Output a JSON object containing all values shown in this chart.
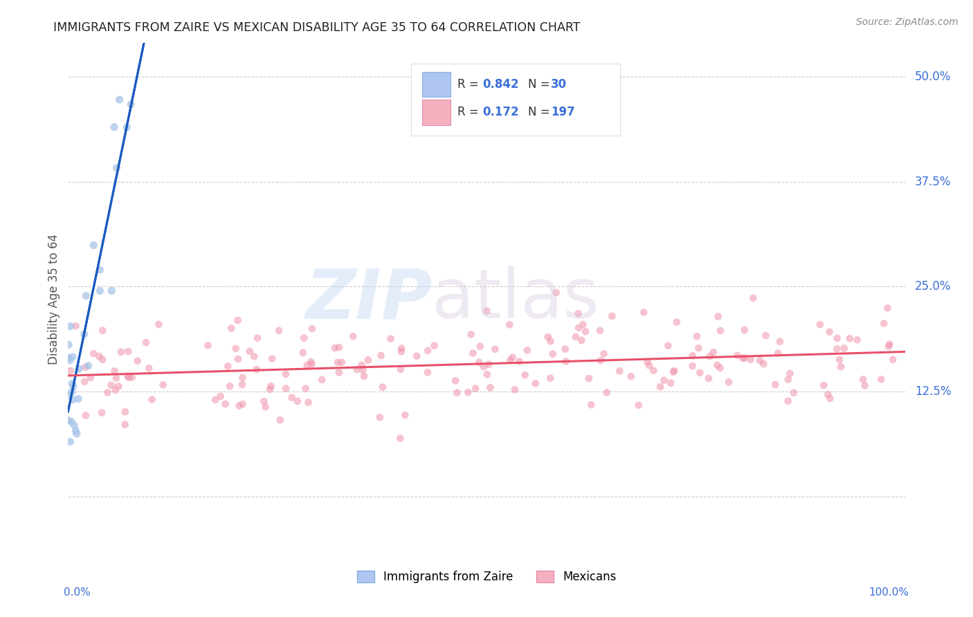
{
  "title": "IMMIGRANTS FROM ZAIRE VS MEXICAN DISABILITY AGE 35 TO 64 CORRELATION CHART",
  "source": "Source: ZipAtlas.com",
  "ylabel": "Disability Age 35 to 64",
  "yticks": [
    0.0,
    0.125,
    0.25,
    0.375,
    0.5
  ],
  "ytick_labels": [
    "",
    "12.5%",
    "25.0%",
    "37.5%",
    "50.0%"
  ],
  "xmin": 0.0,
  "xmax": 1.0,
  "ymin": -0.07,
  "ymax": 0.54,
  "zaire_color": "#a8c4e8",
  "mexican_color": "#f093aa",
  "zaire_line_color": "#1a5bbf",
  "mexican_line_color": "#e8506a",
  "zaire_dashed_color": "#b0c8e8",
  "background_color": "#ffffff",
  "grid_color": "#cccccc",
  "title_color": "#222222",
  "right_label_color": "#3a6fd8",
  "legend_box_color": "#aec6f0",
  "legend_box_color2": "#f5b0c0",
  "legend_border_color": "#dddddd",
  "source_color": "#888888"
}
